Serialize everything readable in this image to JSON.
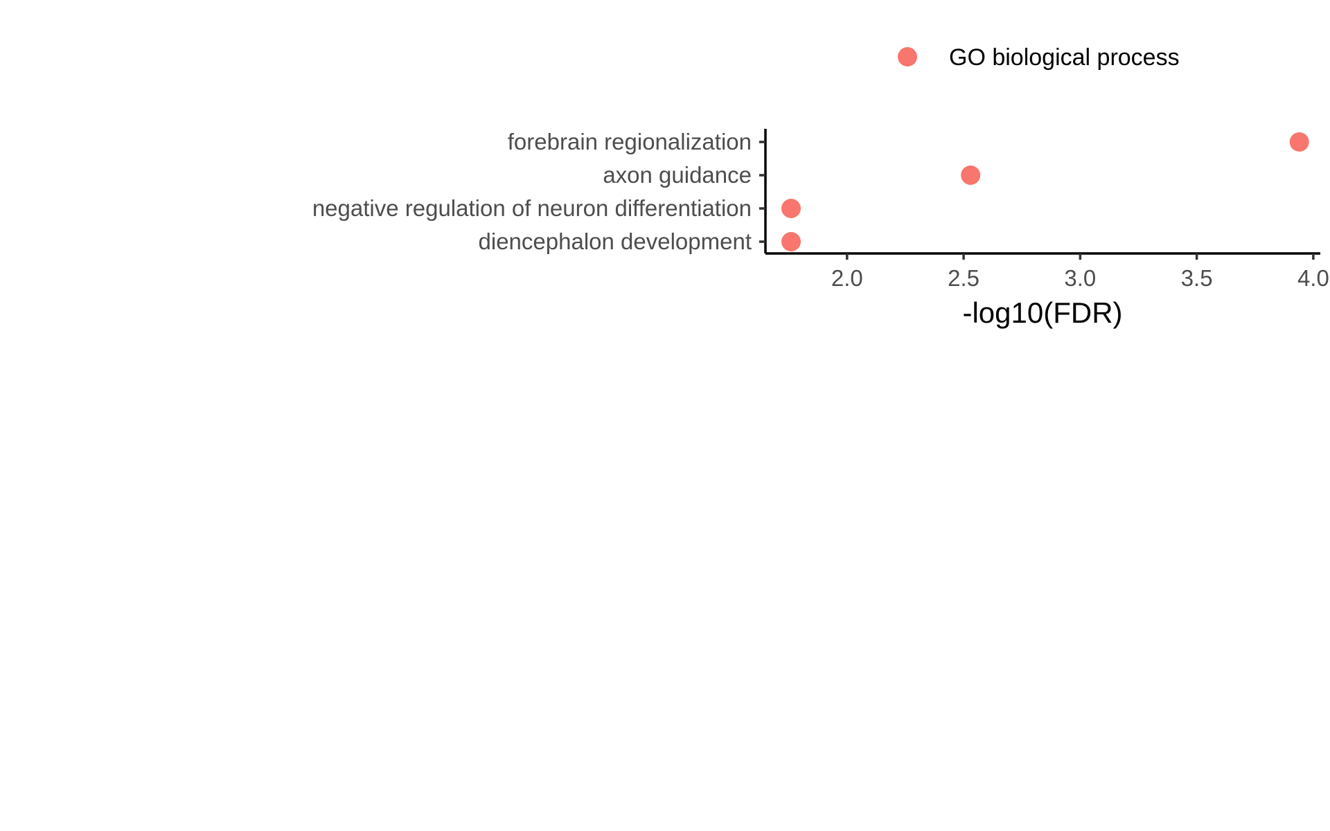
{
  "chart_data": {
    "type": "scatter",
    "categories": [
      "forebrain regionalization",
      "axon guidance",
      "negative regulation of neuron differentiation",
      "diencephalon development"
    ],
    "series": [
      {
        "name": "GO biological process",
        "color": "#f8766d",
        "values": [
          3.94,
          2.53,
          1.76,
          1.76
        ]
      }
    ],
    "xlabel": "-log10(FDR)",
    "ylabel": "",
    "xlim": [
      1.65,
      4.03
    ],
    "xticks": [
      2.0,
      2.5,
      3.0,
      3.5,
      4.0
    ],
    "xtick_labels": [
      "2.0",
      "2.5",
      "3.0",
      "3.5",
      "4.0"
    ],
    "legend_position": "top-right",
    "grid": false
  }
}
